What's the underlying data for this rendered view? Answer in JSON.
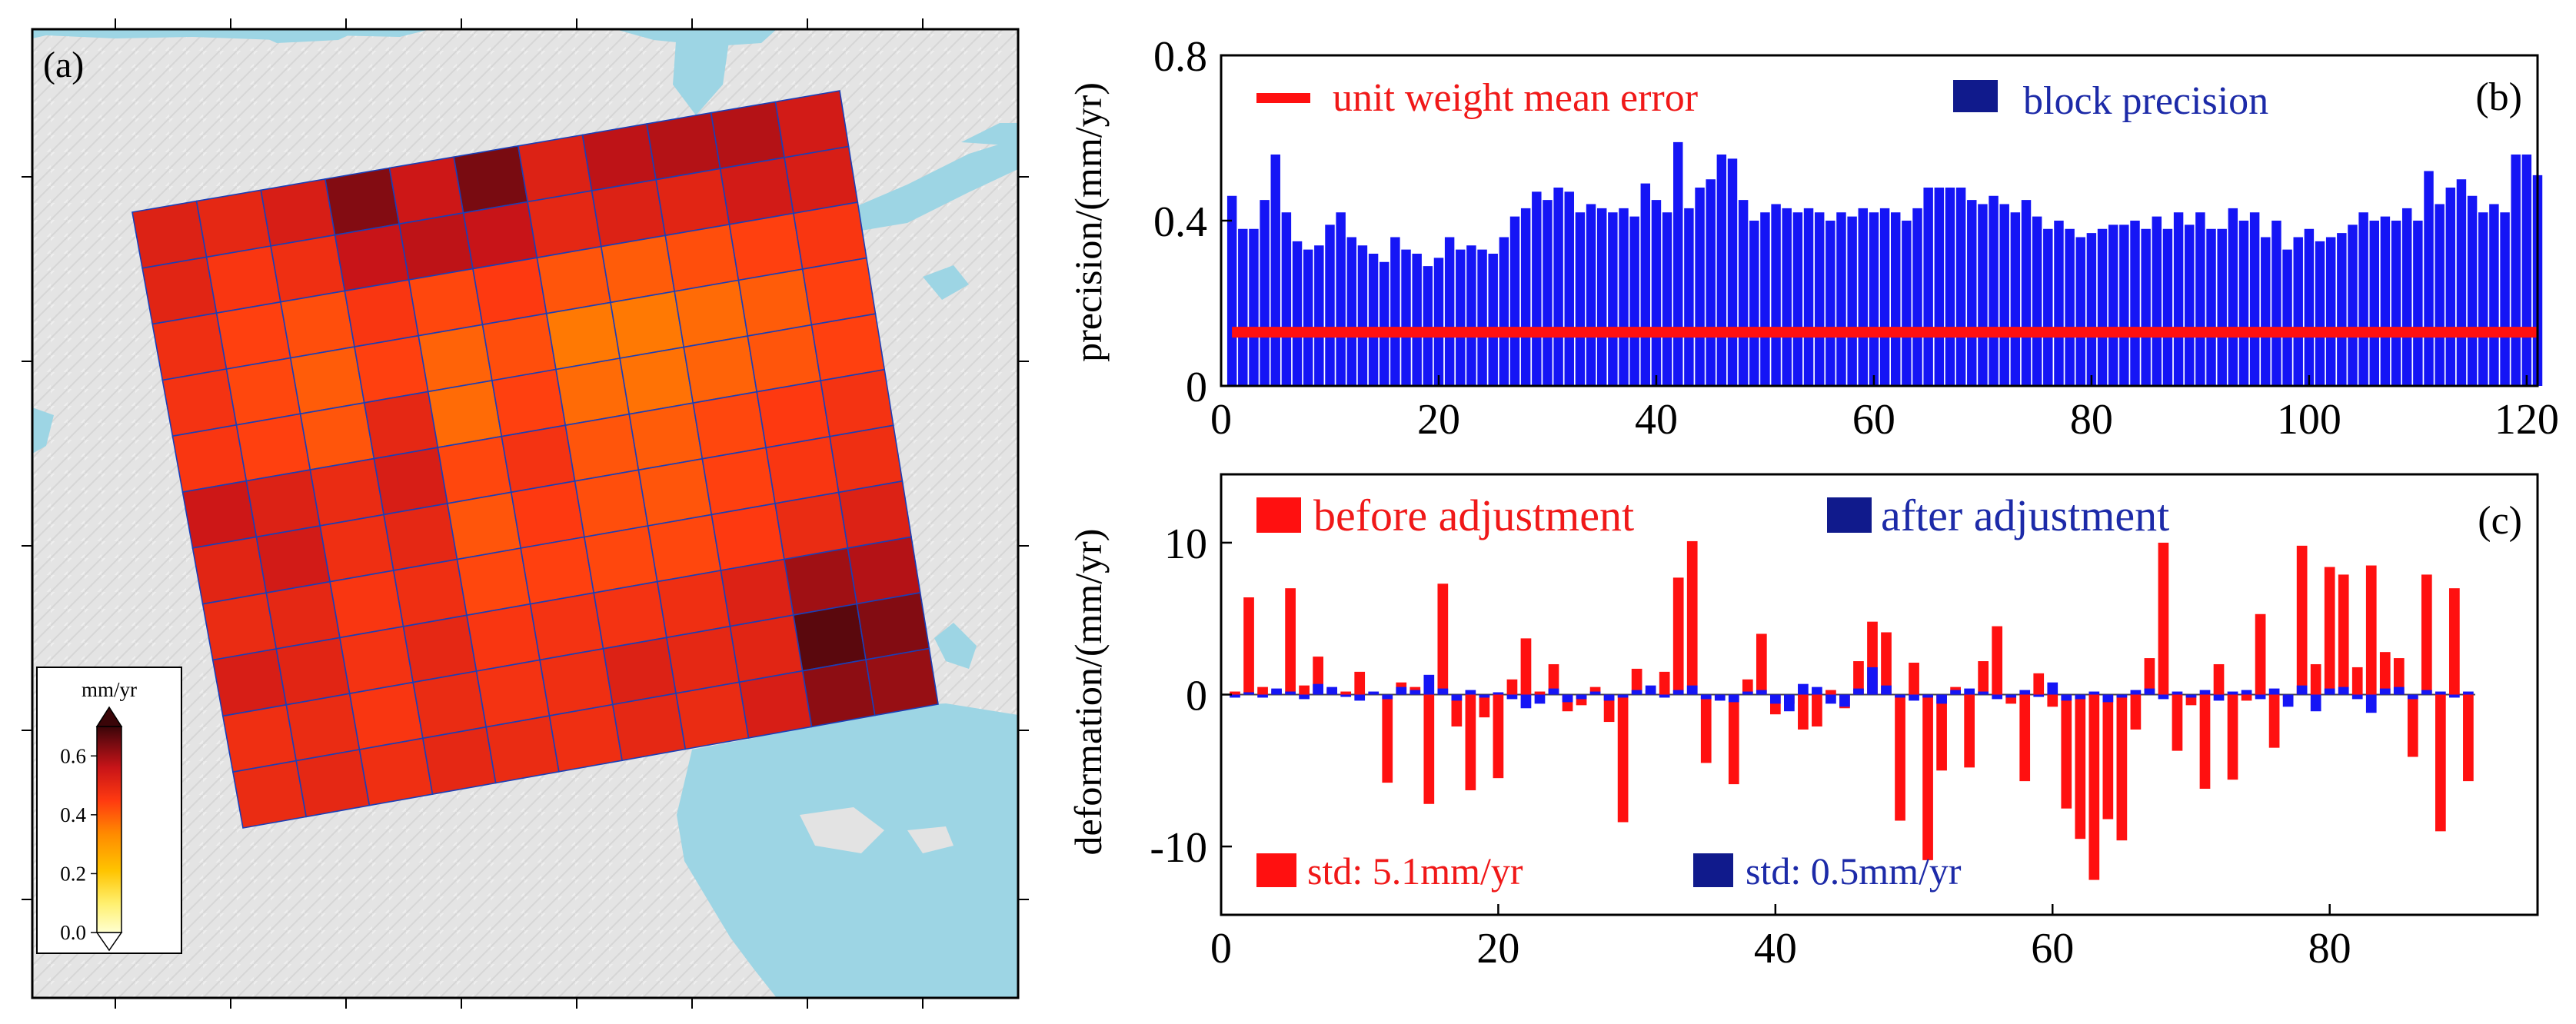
{
  "colors": {
    "red": "#ff1010",
    "blue": "#1515f5",
    "navy": "#101a8c",
    "legend_red_text": "#f01818",
    "legend_blue_text": "#1c2aa8",
    "grid_line": "#1a3fb8",
    "water": "#9dd5e4",
    "land": "#e3e3e3"
  },
  "panel_a": {
    "label": "(a)",
    "colorbar": {
      "unit": "mm/yr",
      "ticks": [
        "0.6",
        "0.4",
        "0.2",
        "0.0"
      ],
      "tick_values": [
        0.6,
        0.4,
        0.2,
        0.0
      ],
      "vmin": 0.0,
      "vmax": 0.7
    },
    "grid": {
      "rows": 11,
      "cols": 11,
      "values": [
        [
          0.52,
          0.5,
          0.53,
          0.63,
          0.55,
          0.64,
          0.52,
          0.57,
          0.58,
          0.58,
          0.54
        ],
        [
          0.51,
          0.46,
          0.48,
          0.56,
          0.57,
          0.56,
          0.5,
          0.52,
          0.51,
          0.54,
          0.53
        ],
        [
          0.48,
          0.44,
          0.42,
          0.46,
          0.43,
          0.45,
          0.41,
          0.4,
          0.42,
          0.44,
          0.46
        ],
        [
          0.47,
          0.43,
          0.4,
          0.44,
          0.39,
          0.42,
          0.36,
          0.36,
          0.38,
          0.4,
          0.44
        ],
        [
          0.46,
          0.44,
          0.41,
          0.5,
          0.38,
          0.44,
          0.38,
          0.37,
          0.39,
          0.41,
          0.44
        ],
        [
          0.55,
          0.52,
          0.49,
          0.53,
          0.43,
          0.47,
          0.41,
          0.4,
          0.43,
          0.45,
          0.47
        ],
        [
          0.51,
          0.54,
          0.48,
          0.5,
          0.41,
          0.45,
          0.42,
          0.41,
          0.44,
          0.46,
          0.48
        ],
        [
          0.49,
          0.5,
          0.46,
          0.48,
          0.43,
          0.44,
          0.43,
          0.43,
          0.45,
          0.49,
          0.52
        ],
        [
          0.53,
          0.51,
          0.47,
          0.5,
          0.46,
          0.47,
          0.47,
          0.48,
          0.52,
          0.6,
          0.58
        ],
        [
          0.48,
          0.49,
          0.46,
          0.49,
          0.47,
          0.48,
          0.52,
          0.5,
          0.51,
          0.67,
          0.63
        ],
        [
          0.49,
          0.5,
          0.48,
          0.5,
          0.49,
          0.48,
          0.5,
          0.49,
          0.53,
          0.62,
          0.61
        ]
      ]
    }
  },
  "chart_data": [
    {
      "id": "b",
      "type": "bar",
      "panel_label": "(b)",
      "ylabel": "precision/(mm/yr)",
      "xlabel": "",
      "xlim": [
        0,
        121
      ],
      "ylim": [
        0,
        0.8
      ],
      "xticks": [
        "0",
        "20",
        "40",
        "60",
        "80",
        "100",
        "120"
      ],
      "xtick_values": [
        0,
        20,
        40,
        60,
        80,
        100,
        120
      ],
      "yticks": [
        "0",
        "0.4",
        "0.8"
      ],
      "ytick_values": [
        0,
        0.4,
        0.8
      ],
      "legend": [
        "unit weight mean error",
        "block precision"
      ],
      "series": [
        {
          "name": "block precision",
          "x_start": 1,
          "values": [
            0.46,
            0.38,
            0.38,
            0.45,
            0.56,
            0.42,
            0.35,
            0.33,
            0.34,
            0.39,
            0.42,
            0.36,
            0.34,
            0.32,
            0.3,
            0.36,
            0.33,
            0.32,
            0.29,
            0.31,
            0.36,
            0.33,
            0.34,
            0.33,
            0.32,
            0.36,
            0.41,
            0.43,
            0.47,
            0.45,
            0.48,
            0.47,
            0.42,
            0.44,
            0.43,
            0.42,
            0.43,
            0.41,
            0.49,
            0.45,
            0.42,
            0.59,
            0.43,
            0.48,
            0.5,
            0.56,
            0.55,
            0.45,
            0.4,
            0.42,
            0.44,
            0.43,
            0.42,
            0.43,
            0.42,
            0.4,
            0.42,
            0.41,
            0.43,
            0.42,
            0.43,
            0.42,
            0.4,
            0.43,
            0.48,
            0.48,
            0.48,
            0.48,
            0.45,
            0.44,
            0.46,
            0.44,
            0.42,
            0.45,
            0.41,
            0.38,
            0.4,
            0.38,
            0.36,
            0.37,
            0.38,
            0.39,
            0.39,
            0.4,
            0.38,
            0.41,
            0.38,
            0.42,
            0.39,
            0.42,
            0.38,
            0.38,
            0.43,
            0.4,
            0.42,
            0.36,
            0.4,
            0.33,
            0.36,
            0.38,
            0.35,
            0.36,
            0.37,
            0.39,
            0.42,
            0.4,
            0.41,
            0.4,
            0.43,
            0.4,
            0.52,
            0.44,
            0.48,
            0.5,
            0.46,
            0.42,
            0.44,
            0.42,
            0.56,
            0.56,
            0.51
          ]
        },
        {
          "name": "unit weight mean error",
          "value": 0.13
        }
      ]
    },
    {
      "id": "c",
      "type": "bar",
      "panel_label": "(c)",
      "ylabel": "deformation/(mm/yr)",
      "xlabel": "",
      "xlim": [
        0,
        95
      ],
      "ylim": [
        -14.5,
        14.5
      ],
      "xticks": [
        "0",
        "20",
        "40",
        "60",
        "80"
      ],
      "xtick_values": [
        0,
        20,
        40,
        60,
        80
      ],
      "yticks": [
        "10",
        "0",
        "-10"
      ],
      "ytick_values": [
        10,
        0,
        -10
      ],
      "legend": [
        "before adjustment",
        "after adjustment"
      ],
      "annotations": [
        "std: 5.1mm/yr",
        "std: 0.5mm/yr"
      ],
      "series": [
        {
          "name": "before adjustment",
          "x_start": 1,
          "values": [
            0.2,
            6.4,
            0.5,
            0.3,
            7.0,
            0.6,
            2.5,
            0.4,
            0.2,
            1.5,
            0.1,
            -5.8,
            0.8,
            0.5,
            -7.2,
            7.3,
            -2.1,
            -6.3,
            -1.5,
            -5.5,
            1.0,
            3.7,
            0.2,
            2.0,
            -1.1,
            -0.7,
            0.5,
            -1.8,
            -8.4,
            1.7,
            0.3,
            1.5,
            7.7,
            10.1,
            -4.5,
            -0.2,
            -5.9,
            1.0,
            4.0,
            -1.3,
            -0.6,
            -2.3,
            -2.1,
            0.3,
            -0.9,
            2.2,
            4.8,
            4.1,
            -8.3,
            2.1,
            -10.9,
            -5.0,
            0.5,
            -4.8,
            2.2,
            4.5,
            -0.6,
            -5.7,
            1.4,
            -0.8,
            -7.5,
            -9.5,
            -12.2,
            -8.2,
            -9.6,
            -2.3,
            2.4,
            10.0,
            -3.7,
            -0.7,
            -6.2,
            2.0,
            -5.6,
            -0.4,
            5.3,
            -3.5,
            -0.3,
            9.8,
            2.0,
            8.4,
            7.9,
            1.8,
            8.5,
            2.8,
            2.4,
            -4.1,
            7.9,
            -9.0,
            7.0,
            -5.7
          ]
        },
        {
          "name": "after adjustment",
          "x_start": 1,
          "values": [
            -0.2,
            0.1,
            -0.2,
            0.4,
            0.2,
            -0.3,
            0.7,
            0.5,
            -0.1,
            -0.4,
            0.2,
            -0.3,
            0.5,
            0.3,
            1.3,
            0.4,
            -0.4,
            0.3,
            -0.2,
            0.1,
            -0.3,
            -0.9,
            -0.6,
            0.4,
            -0.5,
            -0.3,
            0.2,
            -0.4,
            -0.2,
            0.3,
            0.6,
            -0.2,
            0.3,
            0.6,
            -0.3,
            -0.4,
            -0.5,
            0.2,
            0.3,
            -0.6,
            -1.1,
            0.7,
            0.5,
            -0.6,
            -0.8,
            0.4,
            1.8,
            0.6,
            -0.2,
            -0.4,
            -0.2,
            -0.6,
            0.3,
            0.4,
            0.2,
            -0.3,
            -0.2,
            0.3,
            -0.1,
            0.8,
            -0.4,
            -0.3,
            0.2,
            -0.5,
            -0.2,
            0.3,
            0.4,
            -0.3,
            0.2,
            -0.2,
            0.3,
            -0.4,
            0.2,
            0.3,
            -0.3,
            0.4,
            -0.8,
            0.6,
            -1.1,
            0.4,
            0.5,
            -0.3,
            -1.2,
            0.4,
            0.5,
            -0.3,
            0.3,
            0.2,
            -0.2,
            0.2
          ]
        }
      ]
    }
  ]
}
